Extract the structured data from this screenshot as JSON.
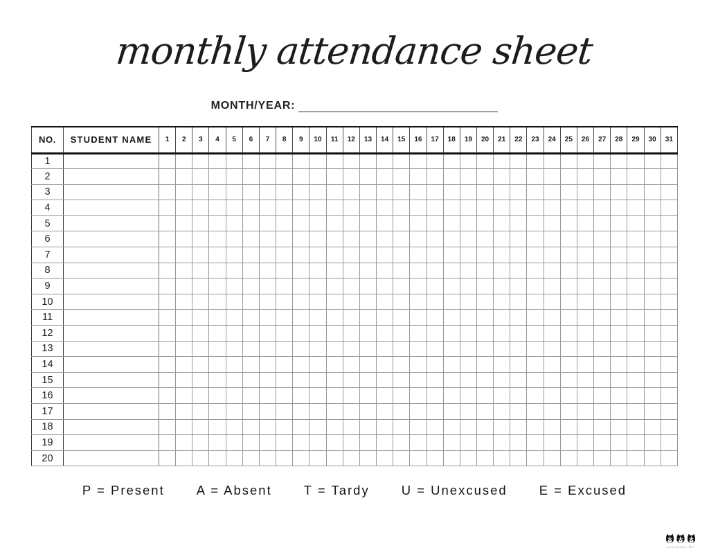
{
  "title": "monthly attendance sheet",
  "month_year": {
    "label": "MONTH/YEAR:",
    "value": ""
  },
  "table": {
    "no_header": "NO.",
    "name_header": "STUDENT NAME",
    "day_columns": [
      "1",
      "2",
      "3",
      "4",
      "5",
      "6",
      "7",
      "8",
      "9",
      "10",
      "11",
      "12",
      "13",
      "14",
      "15",
      "16",
      "17",
      "18",
      "19",
      "20",
      "21",
      "22",
      "23",
      "24",
      "25",
      "26",
      "27",
      "28",
      "29",
      "30",
      "31"
    ],
    "row_numbers": [
      "1",
      "2",
      "3",
      "4",
      "5",
      "6",
      "7",
      "8",
      "9",
      "10",
      "11",
      "12",
      "13",
      "14",
      "15",
      "16",
      "17",
      "18",
      "19",
      "20"
    ],
    "cells_empty": true
  },
  "legend": {
    "separator": "=",
    "items": [
      {
        "code": "P",
        "label": "Present"
      },
      {
        "code": "A",
        "label": "Absent"
      },
      {
        "code": "T",
        "label": "Tardy"
      },
      {
        "code": "U",
        "label": "Unexcused"
      },
      {
        "code": "E",
        "label": "Excused"
      }
    ]
  },
  "footer": {
    "brand": "printabulls"
  },
  "colors": {
    "ink": "#1a1a1a",
    "grid_line": "#979797",
    "heavy_line": "#111111",
    "brand_text": "#b3b3b3"
  }
}
